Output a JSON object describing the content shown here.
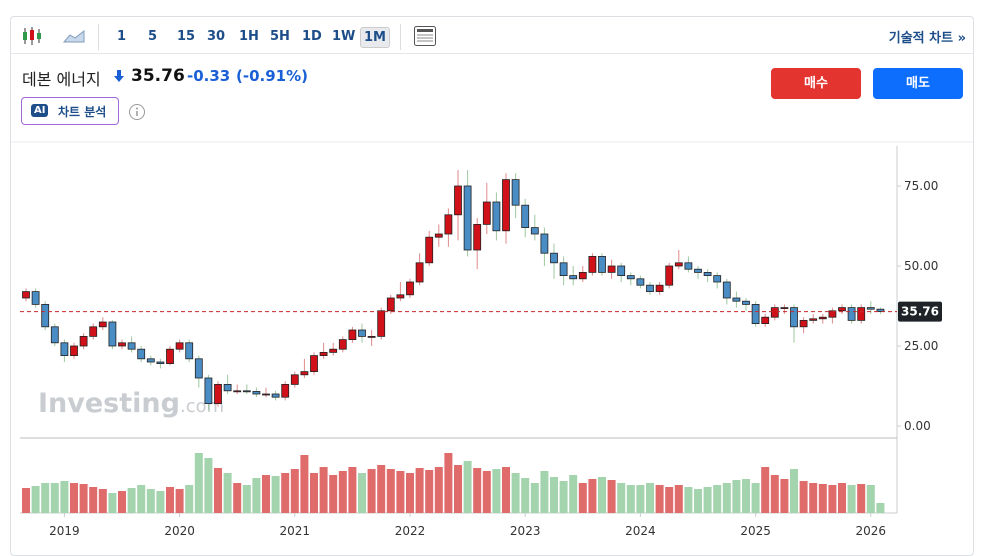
{
  "toolbar": {
    "intervals": [
      "1",
      "5",
      "15",
      "30",
      "1H",
      "5H",
      "1D",
      "1W",
      "1M"
    ],
    "selected": 8,
    "advanced": "기술적 차트 »"
  },
  "header": {
    "name": "데본 에너지",
    "price": 35.76,
    "change": -0.33,
    "change_pct": "(-0.91%)",
    "buy": "매수",
    "sell": "매도",
    "ai_badge": "AI",
    "ai_label": "차트 분석"
  },
  "chart_data": {
    "type": "candlestick",
    "watermark": "Investing",
    "watermark_suffix": ".com",
    "ylim": [
      0,
      87.5
    ],
    "yticks": [
      {
        "value": 0,
        "label": "0.00"
      },
      {
        "value": 25,
        "label": "25.00"
      },
      {
        "value": 50,
        "label": "50.00"
      },
      {
        "value": 75,
        "label": "75.00"
      }
    ],
    "last_price": {
      "value": 35.76,
      "label": "35.76"
    },
    "xticks": [
      {
        "value": 4,
        "label": "2019"
      },
      {
        "value": 16,
        "label": "2020"
      },
      {
        "value": 28,
        "label": "2021"
      },
      {
        "value": 40,
        "label": "2022"
      },
      {
        "value": 52,
        "label": "2023"
      },
      {
        "value": 64,
        "label": "2024"
      },
      {
        "value": 76,
        "label": "2025"
      },
      {
        "value": 88,
        "label": "2026"
      }
    ],
    "up_color": "#d0111a",
    "down_color": "#4a8cc4",
    "vol_up_color": "#e06b6b",
    "vol_down_color": "#a3d4ad",
    "line_color": "#c62828",
    "candles": [
      [
        40,
        43,
        39,
        42
      ],
      [
        42,
        43,
        37,
        38
      ],
      [
        38,
        39,
        30,
        31
      ],
      [
        31,
        32,
        25,
        26
      ],
      [
        26,
        27,
        20,
        22
      ],
      [
        22,
        26,
        21,
        25
      ],
      [
        25,
        29,
        24,
        28
      ],
      [
        28,
        32,
        27,
        31
      ],
      [
        31,
        34,
        30,
        32.5
      ],
      [
        32.5,
        33,
        24,
        25
      ],
      [
        25,
        27,
        24,
        26
      ],
      [
        26,
        28,
        23,
        24
      ],
      [
        24,
        25,
        20,
        21
      ],
      [
        21,
        22,
        19,
        20
      ],
      [
        20,
        21,
        18,
        19.5
      ],
      [
        19.5,
        25,
        19,
        24
      ],
      [
        24,
        27,
        23,
        26
      ],
      [
        26,
        27,
        20,
        21
      ],
      [
        21,
        22,
        12,
        15
      ],
      [
        15,
        16,
        5,
        7
      ],
      [
        7,
        14,
        6,
        13
      ],
      [
        13,
        16,
        10,
        11
      ],
      [
        11,
        13,
        10,
        11
      ],
      [
        11,
        13,
        10,
        10.8
      ],
      [
        10.8,
        12,
        9,
        10
      ],
      [
        10,
        12,
        9,
        10
      ],
      [
        10,
        11,
        8,
        9
      ],
      [
        9,
        14,
        8,
        13
      ],
      [
        13,
        17,
        12,
        16
      ],
      [
        16,
        21,
        15,
        17
      ],
      [
        17,
        23,
        16,
        22
      ],
      [
        22,
        26,
        21,
        23
      ],
      [
        23,
        26,
        22,
        24
      ],
      [
        24,
        28,
        23,
        27
      ],
      [
        27,
        31,
        26,
        30
      ],
      [
        30,
        32,
        26,
        28
      ],
      [
        28,
        30,
        25,
        28
      ],
      [
        28,
        37,
        27,
        36
      ],
      [
        36,
        41,
        35,
        40
      ],
      [
        40,
        45,
        39,
        41
      ],
      [
        41,
        46,
        40,
        45
      ],
      [
        45,
        54,
        44,
        51
      ],
      [
        51,
        61,
        50,
        59
      ],
      [
        59,
        63,
        56,
        60
      ],
      [
        60,
        68,
        56,
        66
      ],
      [
        66,
        80,
        58,
        75
      ],
      [
        75,
        80,
        53,
        55
      ],
      [
        55,
        65,
        49,
        63
      ],
      [
        63,
        76,
        60,
        70
      ],
      [
        70,
        73,
        58,
        61
      ],
      [
        61,
        79,
        57,
        77
      ],
      [
        77,
        79,
        65,
        69
      ],
      [
        69,
        71,
        59,
        62
      ],
      [
        62,
        66,
        58,
        60
      ],
      [
        60,
        62,
        50,
        54
      ],
      [
        54,
        57,
        46,
        51
      ],
      [
        51,
        53,
        44,
        47
      ],
      [
        47,
        50,
        44,
        46
      ],
      [
        46,
        50,
        45,
        48
      ],
      [
        48,
        54,
        47,
        53
      ],
      [
        53,
        54,
        47,
        48
      ],
      [
        48,
        52,
        46,
        50
      ],
      [
        50,
        51,
        45,
        47
      ],
      [
        47,
        48,
        44,
        46
      ],
      [
        46,
        47,
        43,
        44
      ],
      [
        44,
        45,
        41,
        42
      ],
      [
        42,
        45,
        41,
        44
      ],
      [
        44,
        51,
        43,
        50
      ],
      [
        50,
        55,
        49,
        51
      ],
      [
        51,
        53,
        48,
        49
      ],
      [
        49,
        50,
        46,
        48
      ],
      [
        48,
        49,
        45,
        47
      ],
      [
        47,
        48,
        43,
        45
      ],
      [
        45,
        46,
        38,
        40
      ],
      [
        40,
        42,
        37,
        39
      ],
      [
        39,
        40,
        36,
        38
      ],
      [
        38,
        39,
        31,
        32
      ],
      [
        32,
        35,
        31,
        34
      ],
      [
        34,
        38,
        33,
        37
      ],
      [
        37,
        38,
        35,
        37
      ],
      [
        37,
        38,
        26,
        31
      ],
      [
        31,
        34,
        29,
        33
      ],
      [
        33,
        35,
        32,
        33.5
      ],
      [
        33.5,
        35,
        32,
        34
      ],
      [
        34,
        37,
        32,
        36
      ],
      [
        36,
        38,
        35,
        37
      ],
      [
        37,
        38,
        32,
        33
      ],
      [
        33,
        38,
        32,
        37
      ],
      [
        37,
        39,
        35,
        36.5
      ],
      [
        36.5,
        37,
        35,
        35.76
      ]
    ],
    "vlim": [
      0,
      70
    ],
    "volume": [
      25,
      27,
      30,
      30,
      32,
      30,
      29,
      26,
      24,
      20,
      22,
      25,
      28,
      24,
      22,
      26,
      24,
      28,
      60,
      55,
      45,
      40,
      30,
      28,
      35,
      38,
      37,
      40,
      44,
      58,
      40,
      46,
      38,
      42,
      46,
      40,
      44,
      48,
      44,
      42,
      40,
      45,
      43,
      46,
      60,
      48,
      52,
      45,
      42,
      44,
      46,
      40,
      35,
      30,
      42,
      36,
      32,
      38,
      30,
      34,
      36,
      33,
      30,
      28,
      28,
      30,
      28,
      26,
      28,
      26,
      24,
      26,
      28,
      30,
      33,
      34,
      30,
      46,
      38,
      34,
      44,
      32,
      30,
      29,
      28,
      30,
      28,
      29,
      28,
      10
    ]
  }
}
